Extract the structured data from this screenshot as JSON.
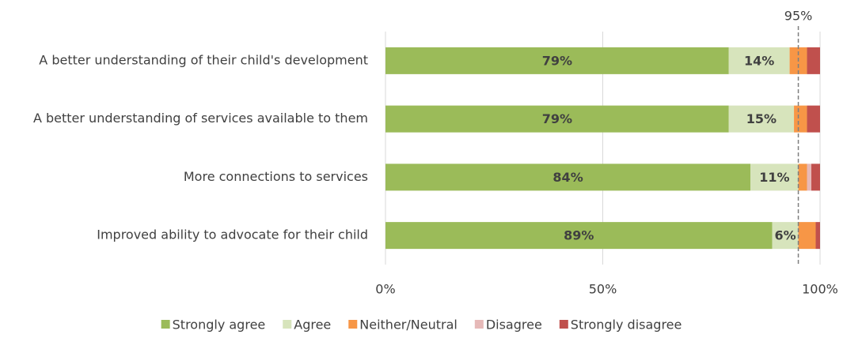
{
  "chart_data": {
    "type": "stacked-bar-horizontal",
    "categories": [
      "A better understanding of their child's development",
      "A better understanding of services available to them",
      "More connections to services",
      "Improved ability to advocate for their child"
    ],
    "series": [
      {
        "name": "Strongly agree",
        "color": "#9bbb59",
        "values": [
          79,
          79,
          84,
          89
        ],
        "value_labels": [
          "79%",
          "79%",
          "84%",
          "89%"
        ]
      },
      {
        "name": "Agree",
        "color": "#d7e4bc",
        "values": [
          14,
          15,
          11,
          6
        ],
        "value_labels": [
          "14%",
          "15%",
          "11%",
          "6%"
        ]
      },
      {
        "name": "Neither/Neutral",
        "color": "#f79646",
        "values": [
          4,
          3,
          2,
          4
        ]
      },
      {
        "name": "Disagree",
        "color": "#e6b9b8",
        "values": [
          0,
          0,
          1,
          0
        ]
      },
      {
        "name": "Strongly disagree",
        "color": "#c0504d",
        "values": [
          3,
          3,
          2,
          1
        ]
      }
    ],
    "xlim": [
      0,
      100
    ],
    "xticks": [
      {
        "value": 0,
        "label": "0%"
      },
      {
        "value": 50,
        "label": "50%"
      },
      {
        "value": 100,
        "label": "100%"
      }
    ],
    "grid": true,
    "legend": "bottom",
    "reference_line": {
      "value": 95,
      "label": "95%"
    }
  }
}
